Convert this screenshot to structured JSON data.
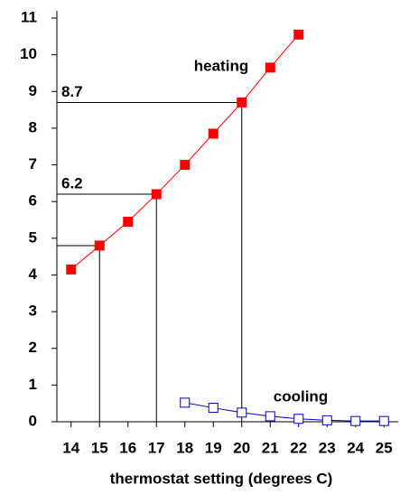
{
  "chart_data": {
    "type": "line",
    "x_label": "thermostat setting (degrees C)",
    "xlim": [
      13.5,
      25.5
    ],
    "xticks": [
      14,
      15,
      16,
      17,
      18,
      19,
      20,
      21,
      22,
      23,
      24,
      25
    ],
    "ylim": [
      0,
      11
    ],
    "yticks": [
      0,
      1,
      2,
      3,
      4,
      5,
      6,
      7,
      8,
      9,
      10,
      11
    ],
    "series": [
      {
        "name": "heating",
        "color": "#ff0000",
        "marker": "filled-square",
        "x": [
          14,
          15,
          16,
          17,
          18,
          19,
          20,
          21,
          22
        ],
        "values": [
          4.15,
          4.8,
          5.45,
          6.2,
          7.0,
          7.85,
          8.7,
          9.65,
          10.55
        ]
      },
      {
        "name": "cooling",
        "color": "#0000cc",
        "marker": "open-square",
        "x": [
          18,
          19,
          20,
          21,
          22,
          23,
          24,
          25
        ],
        "values": [
          0.52,
          0.38,
          0.25,
          0.15,
          0.08,
          0.04,
          0.02,
          0.02
        ]
      }
    ],
    "reference_points": [
      {
        "x": 15,
        "y": 4.8
      },
      {
        "x": 17,
        "y": 6.2,
        "label": "6.2"
      },
      {
        "x": 20,
        "y": 8.7,
        "label": "8.7"
      }
    ]
  }
}
